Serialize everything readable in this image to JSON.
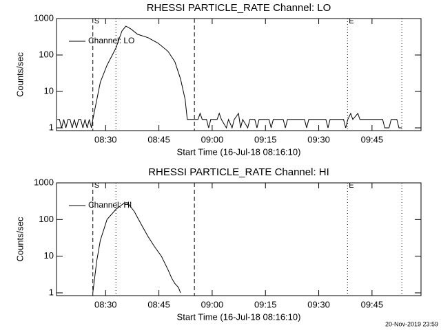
{
  "chart_data": [
    {
      "type": "line",
      "title": "RHESSI PARTICLE_RATE Channel: LO",
      "x_label": "Start Time (16-Jul-18 08:16:10)",
      "y_label": "Counts/sec",
      "log_y": true,
      "xlim": [
        16.17,
        118.8
      ],
      "ylim": [
        0.84,
        1000
      ],
      "xticks": [
        {
          "value": 30,
          "label": "08:30"
        },
        {
          "value": 45,
          "label": "08:45"
        },
        {
          "value": 60,
          "label": "09:00"
        },
        {
          "value": 75,
          "label": "09:15"
        },
        {
          "value": 90,
          "label": "09:30"
        },
        {
          "value": 105,
          "label": "09:45"
        }
      ],
      "yticks": [
        1,
        10,
        100,
        1000
      ],
      "markers": [
        {
          "x": 26.4,
          "style": "dashed",
          "label": "S"
        },
        {
          "x": 32.9,
          "style": "dotted"
        },
        {
          "x": 55.0,
          "style": "dashed"
        },
        {
          "x": 98.1,
          "style": "dotted",
          "label": "E"
        },
        {
          "x": 113.4,
          "style": "dotted"
        }
      ],
      "series": [
        {
          "name": "Channel: LO",
          "color": "#000000",
          "x": [
            16.4,
            17.0,
            17.6,
            18.2,
            18.8,
            19.4,
            20.0,
            20.6,
            21.2,
            21.8,
            22.4,
            23.0,
            23.6,
            24.2,
            24.8,
            25.4,
            26.0,
            26.4,
            28.5,
            30.4,
            32.9,
            34.6,
            35.7,
            37.1,
            39.0,
            41.9,
            44.8,
            47.6,
            49.5,
            51.1,
            52.4,
            53.0,
            56.0,
            56.6,
            57.2,
            58.4,
            59.0,
            59.6,
            61.4,
            62.0,
            62.6,
            64.0,
            64.6,
            65.6,
            66.2,
            67.4,
            68.0,
            68.6,
            70.0,
            70.6,
            72.0,
            72.6,
            73.2,
            76.0,
            76.6,
            77.2,
            80.0,
            80.6,
            81.2,
            86.0,
            86.6,
            87.2,
            92.0,
            92.6,
            93.2,
            97.0,
            97.6,
            98.2,
            99.0,
            99.6,
            101.0,
            101.6,
            108.0,
            108.6,
            109.8,
            110.4,
            112.0,
            112.6,
            113.4
          ],
          "values": [
            1.7,
            1.7,
            1,
            1.7,
            1,
            1.7,
            1.7,
            1,
            1.7,
            1,
            1.7,
            1.7,
            1,
            1.7,
            1,
            1.7,
            1,
            1.7,
            18,
            52,
            155,
            457,
            620,
            520,
            370,
            300,
            210,
            125,
            65,
            22,
            6,
            1.7,
            1.7,
            2.5,
            1.7,
            1.7,
            1,
            1.7,
            1.7,
            2.5,
            1.7,
            1,
            1.7,
            1,
            1.7,
            2.5,
            1,
            1.7,
            1,
            1.7,
            1.7,
            1,
            1.7,
            1.7,
            1,
            1.7,
            1.7,
            1,
            1.7,
            1.7,
            1,
            1.7,
            1.7,
            1,
            1.7,
            1.7,
            1,
            1.7,
            2.5,
            1.7,
            2.5,
            1.7,
            1.7,
            1,
            1,
            1.7,
            1.7,
            1,
            1
          ]
        }
      ]
    },
    {
      "type": "line",
      "title": "RHESSI PARTICLE_RATE Channel: HI",
      "x_label": "Start Time (16-Jul-18 08:16:10)",
      "y_label": "Counts/sec",
      "log_y": true,
      "xlim": [
        16.17,
        118.8
      ],
      "ylim": [
        0.84,
        1000
      ],
      "xticks": [
        {
          "value": 30,
          "label": "08:30"
        },
        {
          "value": 45,
          "label": "08:45"
        },
        {
          "value": 60,
          "label": "09:00"
        },
        {
          "value": 75,
          "label": "09:15"
        },
        {
          "value": 90,
          "label": "09:30"
        },
        {
          "value": 105,
          "label": "09:45"
        }
      ],
      "yticks": [
        1,
        10,
        100,
        1000
      ],
      "markers": [
        {
          "x": 26.4,
          "style": "dashed",
          "label": "S"
        },
        {
          "x": 32.9,
          "style": "dotted"
        },
        {
          "x": 55.0,
          "style": "dashed"
        },
        {
          "x": 98.1,
          "style": "dotted",
          "label": "E"
        },
        {
          "x": 113.4,
          "style": "dotted"
        }
      ],
      "series": [
        {
          "name": "Channel: HI",
          "color": "#000000",
          "x": [
            26.4,
            27.5,
            28.5,
            30.4,
            32.9,
            35.2,
            36.1,
            38.0,
            40.0,
            41.9,
            43.8,
            45.7,
            47.6,
            48.6,
            49.5,
            50.5,
            51.1
          ],
          "values": [
            1,
            7.4,
            27,
            100,
            190,
            280,
            290,
            170,
            75,
            35,
            18,
            10,
            4.2,
            2.5,
            1.8,
            1.4,
            1
          ]
        }
      ]
    }
  ],
  "footer": "20-Nov-2019 23:59"
}
